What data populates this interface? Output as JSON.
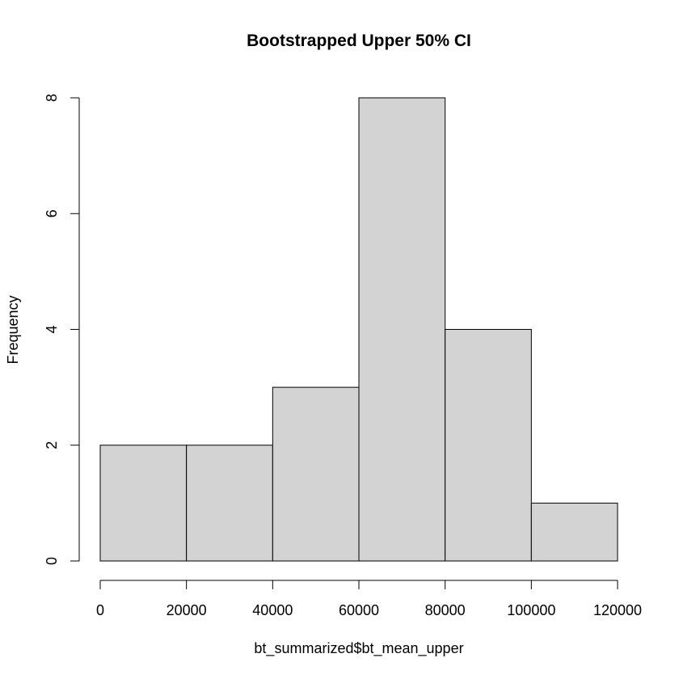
{
  "chart_data": {
    "type": "bar",
    "title": "Bootstrapped Upper 50% CI",
    "xlabel": "bt_summarized$bt_mean_upper",
    "ylabel": "Frequency",
    "bins": [
      {
        "x0": 0,
        "x1": 20000,
        "count": 2
      },
      {
        "x0": 20000,
        "x1": 40000,
        "count": 2
      },
      {
        "x0": 40000,
        "x1": 60000,
        "count": 3
      },
      {
        "x0": 60000,
        "x1": 80000,
        "count": 8
      },
      {
        "x0": 80000,
        "x1": 100000,
        "count": 4
      },
      {
        "x0": 100000,
        "x1": 120000,
        "count": 1
      }
    ],
    "xlim": [
      0,
      120000
    ],
    "ylim": [
      0,
      8
    ],
    "x_ticks": [
      0,
      20000,
      40000,
      60000,
      80000,
      100000,
      120000
    ],
    "x_tick_labels": [
      "0",
      "20000",
      "40000",
      "60000",
      "80000",
      "100000",
      "120000"
    ],
    "y_ticks": [
      0,
      2,
      4,
      6,
      8
    ],
    "y_tick_labels": [
      "0",
      "2",
      "4",
      "6",
      "8"
    ],
    "grid": false,
    "legend": "none",
    "colors": {
      "bar_fill": "#d3d3d3",
      "bar_stroke": "#000000",
      "axis": "#000000"
    }
  }
}
